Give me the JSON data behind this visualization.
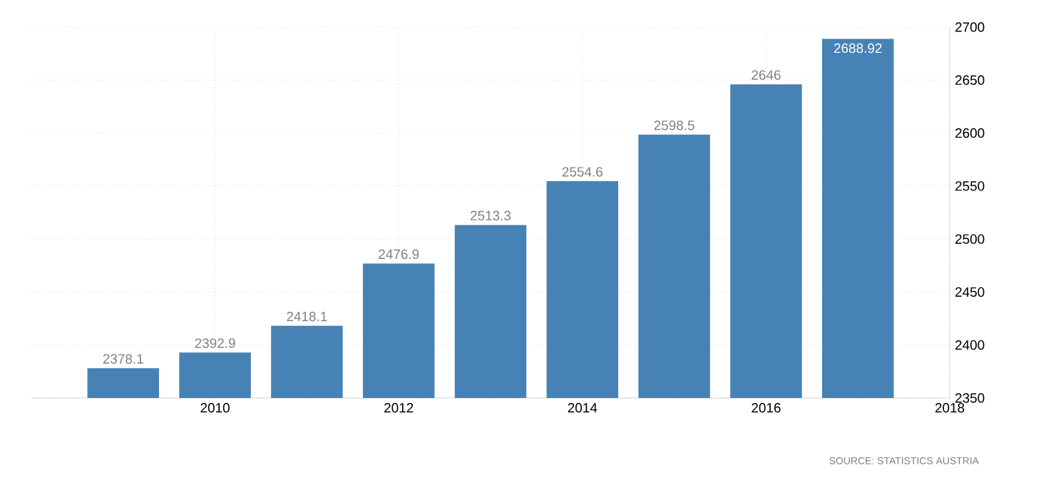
{
  "chart_data": {
    "type": "bar",
    "x": [
      2009,
      2010,
      2011,
      2012,
      2013,
      2014,
      2015,
      2016,
      2017
    ],
    "values": [
      2378.1,
      2392.9,
      2418.1,
      2476.9,
      2513.3,
      2554.6,
      2598.5,
      2646,
      2688.92
    ],
    "value_labels": [
      "2378.1",
      "2392.9",
      "2418.1",
      "2476.9",
      "2513.3",
      "2554.6",
      "2598.5",
      "2646",
      "2688.92"
    ],
    "color": "#4682b4",
    "xlim": [
      2008,
      2018
    ],
    "xticks": [
      2010,
      2012,
      2014,
      2016,
      2018
    ],
    "ylim": [
      2350,
      2700
    ],
    "yticks": [
      2350,
      2400,
      2450,
      2500,
      2550,
      2600,
      2650,
      2700
    ],
    "grid": true,
    "annotations": [
      "SOURCE: STATISTICS AUSTRIA"
    ]
  }
}
